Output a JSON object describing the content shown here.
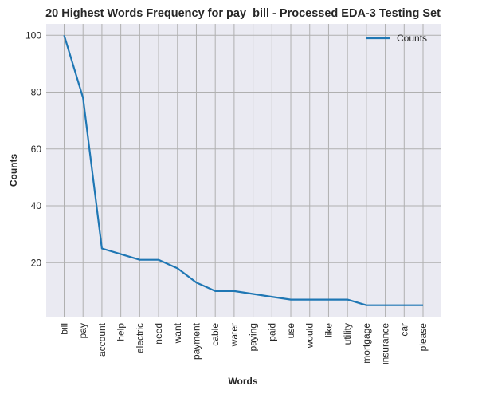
{
  "chart_data": {
    "type": "line",
    "title": "20 Highest Words Frequency for pay_bill - Processed EDA-3 Testing Set",
    "xlabel": "Words",
    "ylabel": "Counts",
    "categories": [
      "bill",
      "pay",
      "account",
      "help",
      "electric",
      "need",
      "want",
      "payment",
      "cable",
      "water",
      "paying",
      "paid",
      "use",
      "would",
      "like",
      "utility",
      "mortgage",
      "insurance",
      "car",
      "please"
    ],
    "series": [
      {
        "name": "Counts",
        "values": [
          100,
          78,
          25,
          23,
          21,
          21,
          18,
          13,
          10,
          10,
          9,
          8,
          7,
          7,
          7,
          7,
          5,
          5,
          5,
          5
        ]
      }
    ],
    "yticks": [
      20,
      40,
      60,
      80,
      100
    ],
    "ylim": [
      1,
      104
    ],
    "grid": true,
    "legend": "top-right",
    "colors": {
      "line": "#1f77b4",
      "plot_bg": "#eaeaf2",
      "grid": "#b0b0b0"
    }
  }
}
